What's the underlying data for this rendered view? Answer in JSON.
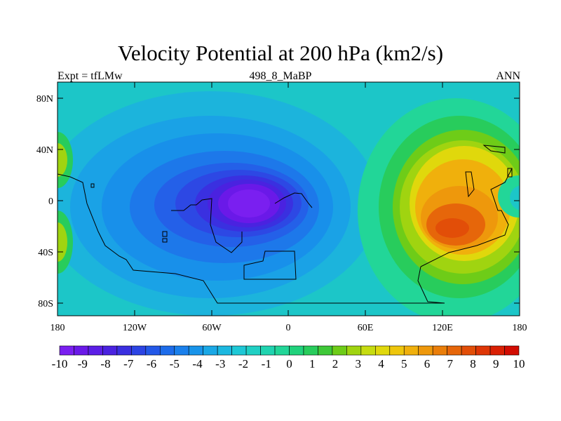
{
  "title": "Velocity Potential at 200 hPa (km2/s)",
  "left_label": "Expt = tfLMw",
  "center_label": "498_8_MaBP",
  "right_label": "ANN",
  "map": {
    "lat_ticks": [
      "80N",
      "40N",
      "0",
      "40S",
      "80S"
    ],
    "lon_ticks": [
      "180",
      "120W",
      "60W",
      "0",
      "60E",
      "120E",
      "180"
    ],
    "field_centers": [
      {
        "name": "minimum",
        "lon": -25,
        "lat": 0,
        "value": -10
      },
      {
        "name": "maximum",
        "lon": 128,
        "lat": -20,
        "value": 9
      }
    ]
  },
  "colorbar": {
    "labels": [
      "-10",
      "-9",
      "-8",
      "-7",
      "-6",
      "-5",
      "-4",
      "-3",
      "-2",
      "-1",
      "0",
      "1",
      "2",
      "3",
      "4",
      "5",
      "6",
      "7",
      "8",
      "9",
      "10"
    ],
    "colors": [
      "#7a1ff0",
      "#6a19e8",
      "#5b1ee6",
      "#4a22e0",
      "#3a2fe0",
      "#2c44e4",
      "#2358e8",
      "#1d6cea",
      "#1a80ec",
      "#1894ea",
      "#1aa8e6",
      "#1cb8e0",
      "#1ec8d6",
      "#20d0c4",
      "#20d4b0",
      "#22d698",
      "#20d27c",
      "#28cc5c",
      "#3ec838",
      "#6ecc18",
      "#a0d410",
      "#c6dc10",
      "#e0d80c",
      "#eec60c",
      "#f0b00c",
      "#ee980c",
      "#ea7e0a",
      "#e6660a",
      "#e24e08",
      "#de3606",
      "#da2004",
      "#d20c02"
    ]
  }
}
